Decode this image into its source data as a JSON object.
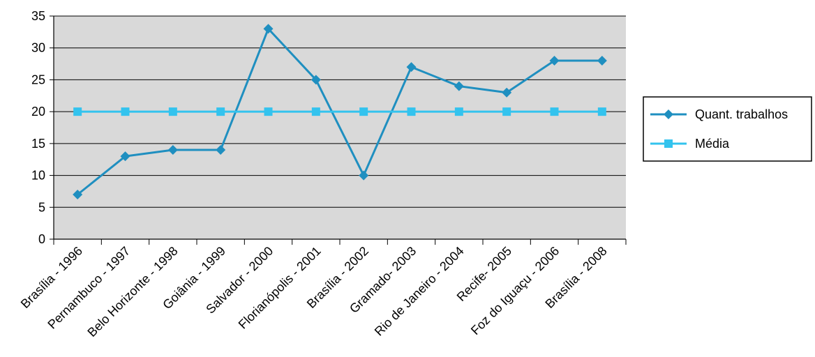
{
  "chart_data": {
    "type": "line",
    "categories": [
      "Brasília - 1996",
      "Pernambuco - 1997",
      "Belo Horizonte - 1998",
      "Goiânia - 1999",
      "Salvador - 2000",
      "Florianópolis - 2001",
      "Brasília - 2002",
      "Gramado- 2003",
      "Rio de Janeiro - 2004",
      "Recife- 2005",
      "Foz do Iguaçu - 2006",
      "Brasília - 2008"
    ],
    "series": [
      {
        "name": "Quant. trabalhos",
        "color": "#1f8fc0",
        "marker": "diamond",
        "values": [
          7,
          13,
          14,
          14,
          33,
          25,
          10,
          27,
          24,
          23,
          28,
          28
        ]
      },
      {
        "name": "Média",
        "color": "#33c3ee",
        "marker": "square",
        "values": [
          20,
          20,
          20,
          20,
          20,
          20,
          20,
          20,
          20,
          20,
          20,
          20
        ]
      }
    ],
    "ylim": [
      0,
      35
    ],
    "yticks": [
      0,
      5,
      10,
      15,
      20,
      25,
      30,
      35
    ],
    "grid": true,
    "plot_background": "#d9d9d9",
    "legend_position": "right"
  }
}
